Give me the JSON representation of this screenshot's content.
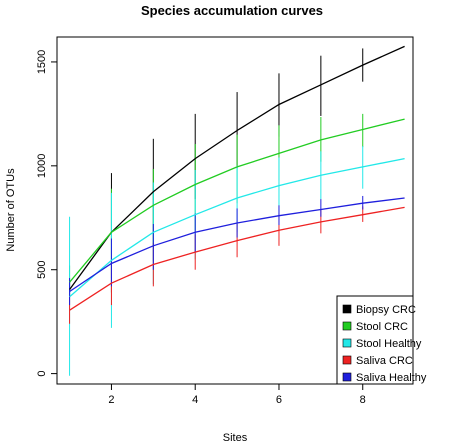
{
  "chart_data": {
    "type": "line",
    "title": "Species accumulation curves",
    "xlabel": "Sites",
    "ylabel": "Number of OTUs",
    "xlim": [
      0.7,
      9.2
    ],
    "ylim": [
      -50,
      1620
    ],
    "xticks": [
      2,
      4,
      6,
      8
    ],
    "yticks": [
      0,
      500,
      1000,
      1500
    ],
    "grid": false,
    "legend_position": "bottom-right",
    "x": [
      1,
      2,
      3,
      4,
      5,
      6,
      7,
      8,
      9
    ],
    "series": [
      {
        "name": "Biopsy CRC",
        "color": "#000000",
        "values": [
          405,
          680,
          875,
          1035,
          1170,
          1295,
          1390,
          1485,
          1575
        ],
        "errors": [
          [
            1,
            370,
            440
          ],
          [
            2,
            390,
            965
          ],
          [
            3,
            620,
            1130
          ],
          [
            4,
            840,
            1250
          ],
          [
            5,
            990,
            1355
          ],
          [
            6,
            1140,
            1445
          ],
          [
            7,
            1240,
            1530
          ],
          [
            8,
            1405,
            1565
          ]
        ]
      },
      {
        "name": "Stool CRC",
        "color": "#22cc22",
        "values": [
          440,
          680,
          810,
          910,
          995,
          1060,
          1125,
          1175,
          1225
        ],
        "errors": [
          [
            1,
            370,
            520
          ],
          [
            2,
            460,
            890
          ],
          [
            3,
            540,
            985
          ],
          [
            4,
            690,
            1105
          ],
          [
            5,
            820,
            1150
          ],
          [
            6,
            930,
            1195
          ],
          [
            7,
            1020,
            1235
          ],
          [
            8,
            1090,
            1250
          ]
        ]
      },
      {
        "name": "Stool Healthy",
        "color": "#22e8e8",
        "values": [
          370,
          545,
          680,
          765,
          845,
          905,
          955,
          995,
          1035
        ],
        "errors": [
          [
            1,
            -10,
            755
          ],
          [
            2,
            220,
            870
          ],
          [
            3,
            430,
            920
          ],
          [
            4,
            550,
            980
          ],
          [
            5,
            680,
            1000
          ],
          [
            6,
            760,
            1040
          ],
          [
            7,
            840,
            1070
          ],
          [
            8,
            890,
            1095
          ]
        ]
      },
      {
        "name": "Saliva CRC",
        "color": "#ee2222",
        "values": [
          305,
          435,
          525,
          585,
          640,
          690,
          730,
          765,
          800
        ],
        "errors": [
          [
            1,
            240,
            375
          ],
          [
            2,
            330,
            535
          ],
          [
            3,
            420,
            630
          ],
          [
            4,
            500,
            670
          ],
          [
            5,
            560,
            720
          ],
          [
            6,
            615,
            770
          ],
          [
            7,
            675,
            790
          ],
          [
            8,
            730,
            805
          ]
        ]
      },
      {
        "name": "Saliva Healthy",
        "color": "#1f1fdd",
        "values": [
          395,
          530,
          615,
          680,
          725,
          760,
          790,
          820,
          845
        ],
        "errors": [
          [
            1,
            330,
            460
          ],
          [
            2,
            420,
            650
          ],
          [
            3,
            500,
            720
          ],
          [
            4,
            585,
            770
          ],
          [
            5,
            655,
            795
          ],
          [
            6,
            715,
            810
          ],
          [
            7,
            755,
            840
          ],
          [
            8,
            790,
            855
          ]
        ]
      }
    ]
  }
}
